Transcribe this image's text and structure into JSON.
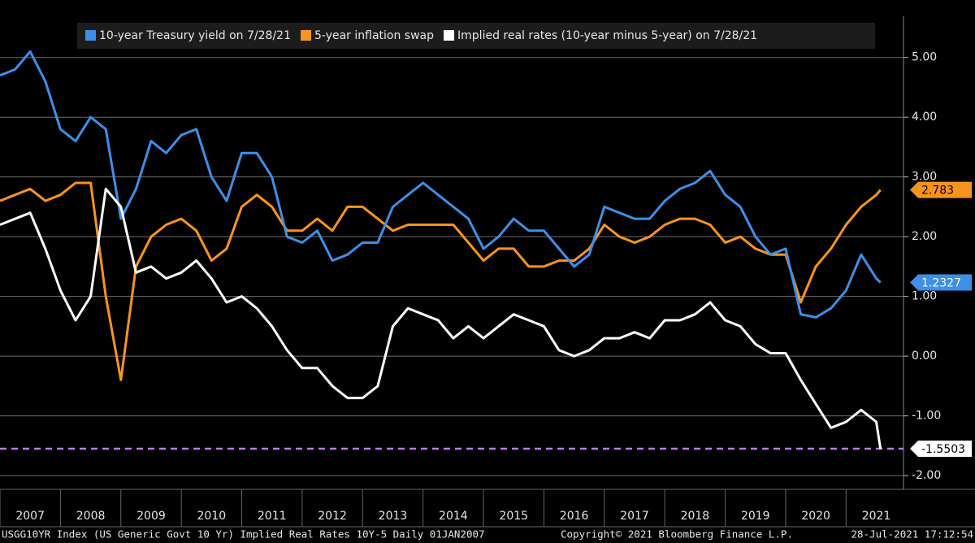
{
  "chart_data": {
    "type": "line",
    "legend": [
      "10-year Treasury yield on 7/28/21",
      "5-year inflation swap",
      "Implied real rates (10-year minus 5-year) on 7/28/21"
    ],
    "x": [
      2007.0,
      2007.25,
      2007.5,
      2007.75,
      2008.0,
      2008.25,
      2008.5,
      2008.75,
      2009.0,
      2009.25,
      2009.5,
      2009.75,
      2010.0,
      2010.25,
      2010.5,
      2010.75,
      2011.0,
      2011.25,
      2011.5,
      2011.75,
      2012.0,
      2012.25,
      2012.5,
      2012.75,
      2013.0,
      2013.25,
      2013.5,
      2013.75,
      2014.0,
      2014.25,
      2014.5,
      2014.75,
      2015.0,
      2015.25,
      2015.5,
      2015.75,
      2016.0,
      2016.25,
      2016.5,
      2016.75,
      2017.0,
      2017.25,
      2017.5,
      2017.75,
      2018.0,
      2018.25,
      2018.5,
      2018.75,
      2019.0,
      2019.25,
      2019.5,
      2019.75,
      2020.0,
      2020.25,
      2020.5,
      2020.75,
      2021.0,
      2021.25,
      2021.5,
      2021.57
    ],
    "series": [
      {
        "name": "10-year Treasury yield on 7/28/21",
        "color": "#3d8fe8",
        "values": [
          4.7,
          4.8,
          5.1,
          4.6,
          3.8,
          3.6,
          4.0,
          3.8,
          2.3,
          2.8,
          3.6,
          3.4,
          3.7,
          3.8,
          3.0,
          2.6,
          3.4,
          3.4,
          3.0,
          2.0,
          1.9,
          2.1,
          1.6,
          1.7,
          1.9,
          1.9,
          2.5,
          2.7,
          2.9,
          2.7,
          2.5,
          2.3,
          1.8,
          2.0,
          2.3,
          2.1,
          2.1,
          1.8,
          1.5,
          1.7,
          2.5,
          2.4,
          2.3,
          2.3,
          2.6,
          2.8,
          2.9,
          3.1,
          2.7,
          2.5,
          2.0,
          1.7,
          1.8,
          0.7,
          0.65,
          0.8,
          1.1,
          1.7,
          1.3,
          1.2327
        ]
      },
      {
        "name": "5-year inflation swap",
        "color": "#f7941d",
        "values": [
          2.6,
          2.7,
          2.8,
          2.6,
          2.7,
          2.9,
          2.9,
          1.0,
          -0.4,
          1.5,
          2.0,
          2.2,
          2.3,
          2.1,
          1.6,
          1.8,
          2.5,
          2.7,
          2.5,
          2.1,
          2.1,
          2.3,
          2.1,
          2.5,
          2.5,
          2.3,
          2.1,
          2.2,
          2.2,
          2.2,
          2.2,
          1.9,
          1.6,
          1.8,
          1.8,
          1.5,
          1.5,
          1.6,
          1.6,
          1.8,
          2.2,
          2.0,
          1.9,
          2.0,
          2.2,
          2.3,
          2.3,
          2.2,
          1.9,
          2.0,
          1.8,
          1.7,
          1.7,
          0.9,
          1.5,
          1.8,
          2.2,
          2.5,
          2.7,
          2.783
        ]
      },
      {
        "name": "Implied real rates (10-year minus 5-year) on 7/28/21",
        "color": "#ffffff",
        "values": [
          2.2,
          2.3,
          2.4,
          1.8,
          1.1,
          0.6,
          1.0,
          2.8,
          2.5,
          1.4,
          1.5,
          1.3,
          1.4,
          1.6,
          1.3,
          0.9,
          1.0,
          0.8,
          0.5,
          0.1,
          -0.2,
          -0.2,
          -0.5,
          -0.7,
          -0.7,
          -0.5,
          0.5,
          0.8,
          0.7,
          0.6,
          0.3,
          0.5,
          0.3,
          0.5,
          0.7,
          0.6,
          0.5,
          0.1,
          0.0,
          0.1,
          0.3,
          0.3,
          0.4,
          0.3,
          0.6,
          0.6,
          0.7,
          0.9,
          0.6,
          0.5,
          0.2,
          0.05,
          0.05,
          -0.4,
          -0.8,
          -1.2,
          -1.1,
          -0.9,
          -1.1,
          -1.5503
        ]
      }
    ],
    "xlim": [
      2007,
      2021.95
    ],
    "xticks": [
      2007,
      2008,
      2009,
      2010,
      2011,
      2012,
      2013,
      2014,
      2015,
      2016,
      2017,
      2018,
      2019,
      2020,
      2021
    ],
    "ylim": [
      -2.23,
      5.69
    ],
    "yticks": [
      {
        "value": 5,
        "label": "5.00"
      },
      {
        "value": 4,
        "label": "4.00"
      },
      {
        "value": 3,
        "label": "3.00"
      },
      {
        "value": 2,
        "label": "2.00"
      },
      {
        "value": 1,
        "label": "1.00"
      },
      {
        "value": 0,
        "label": "0.00"
      },
      {
        "value": -1,
        "label": "-1.00"
      },
      {
        "value": -2,
        "label": "-2.00"
      }
    ],
    "grid": true,
    "hline": {
      "value": -1.5503,
      "color": "#b77be8"
    }
  },
  "footer": {
    "left": "USGG10YR Index (US Generic Govt 10 Yr) Implied Real Rates 10Y-5  Daily 01JAN2007",
    "copyright": "Copyright© 2021 Bloomberg Finance L.P.",
    "timestamp": "28-Jul-2021 17:12:54"
  }
}
